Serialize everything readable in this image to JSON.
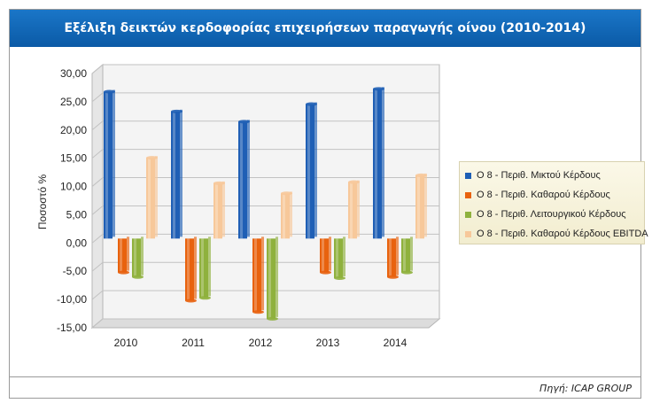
{
  "chart_data": {
    "type": "bar",
    "title": "Εξέλιξη δεικτών κερδοφορίας επιχειρήσεων παραγωγής οίνου (2010-2014)",
    "ylabel": "Ποσοστό %",
    "xlabel": "",
    "categories": [
      "2010",
      "2011",
      "2012",
      "2013",
      "2014"
    ],
    "ylim": [
      -15,
      30
    ],
    "yticks": [
      "30,00",
      "25,00",
      "20,00",
      "15,00",
      "10,00",
      "5,00",
      "0,00",
      "-5,00",
      "-10,00",
      "-15,00"
    ],
    "ytick_values": [
      30,
      25,
      20,
      15,
      10,
      5,
      0,
      -5,
      -10,
      -15
    ],
    "grid": true,
    "legend_position": "right",
    "series": [
      {
        "name": "Ο 8 - Περιθ. Μικτού Κέρδους",
        "color": "#1f5fb5",
        "values": [
          26.0,
          22.5,
          20.7,
          23.8,
          26.5
        ]
      },
      {
        "name": "Ο 8 - Περιθ. Καθαρού Κέρδους",
        "color": "#e8620e",
        "values": [
          -6.0,
          -11.0,
          -13.0,
          -6.0,
          -6.8
        ]
      },
      {
        "name": "Ο 8 - Περιθ. Λειτουργικού Κέρδους",
        "color": "#8fb13d",
        "values": [
          -6.8,
          -10.5,
          -14.2,
          -7.0,
          -6.0
        ]
      },
      {
        "name": "Ο 8 - Περιθ. Καθαρού Κέρδους EBITDA",
        "color": "#f7c89a",
        "values": [
          14.3,
          9.8,
          8.0,
          10.0,
          11.2
        ]
      }
    ],
    "source": "Πηγή: ICAP GROUP"
  }
}
